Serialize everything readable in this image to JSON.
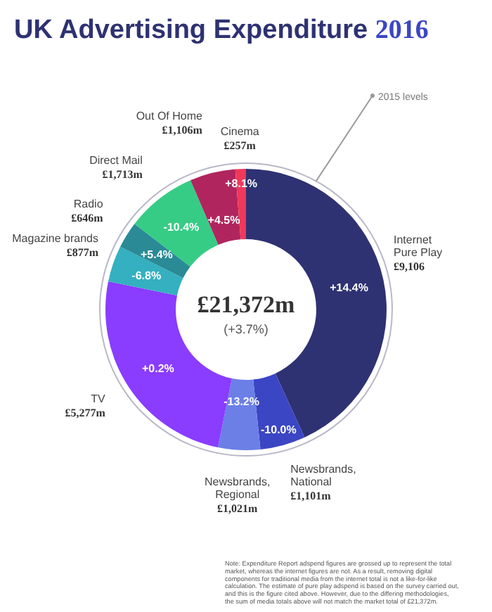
{
  "chart_data": {
    "type": "donut",
    "title": "UK Advertising Expenditure 2016",
    "categories": [
      "Internet Pure Play",
      "Newsbrands, National",
      "Newsbrands, Regional",
      "TV",
      "Magazine brands",
      "Radio",
      "Direct Mail",
      "Out Of Home",
      "Cinema"
    ],
    "values": [
      9106,
      1101,
      1021,
      5277,
      877,
      646,
      1713,
      1106,
      257
    ],
    "colors": [
      "#2e3272",
      "#3b46c4",
      "#6b7fe6",
      "#8a3cff",
      "#34b0c0",
      "#2a8a96",
      "#36cc86",
      "#b0255e",
      "#f0385a"
    ],
    "value_labels": [
      "£9,106",
      "£1,101m",
      "£1,021m",
      "£5,277m",
      "£877m",
      "£646m",
      "£1,713m",
      "£1,106m",
      "£257m"
    ],
    "annotations": [
      {
        "text": "+14.4%",
        "x": "Internet Pure Play"
      },
      {
        "text": "-10.0%",
        "x": "Newsbrands, National"
      },
      {
        "text": "-13.2%",
        "x": "Newsbrands, Regional"
      },
      {
        "text": "+0.2%",
        "x": "TV"
      },
      {
        "text": "-6.8%",
        "x": "Magazine brands"
      },
      {
        "text": "+5.4%",
        "x": "Radio"
      },
      {
        "text": "-10.4%",
        "x": "Direct Mail"
      },
      {
        "text": "+4.5%",
        "x": "Out Of Home"
      },
      {
        "text": "+8.1%",
        "x": "Cinema"
      },
      "£21,372m",
      "(+3.7%)",
      "2015 levels",
      "Note: Expenditure Report adspend figures are grossed up to represent the total market, whereas the internet figures are not. As a result, removing digital components for traditional media from the internet total is not a like-for-like calculation. The estimate of pure play adspend is based on the survey carried out, and this is the figure cited above. However, due to the differing methodologies, the sum of media totals above will not match the market total of £21,372m."
    ]
  }
}
